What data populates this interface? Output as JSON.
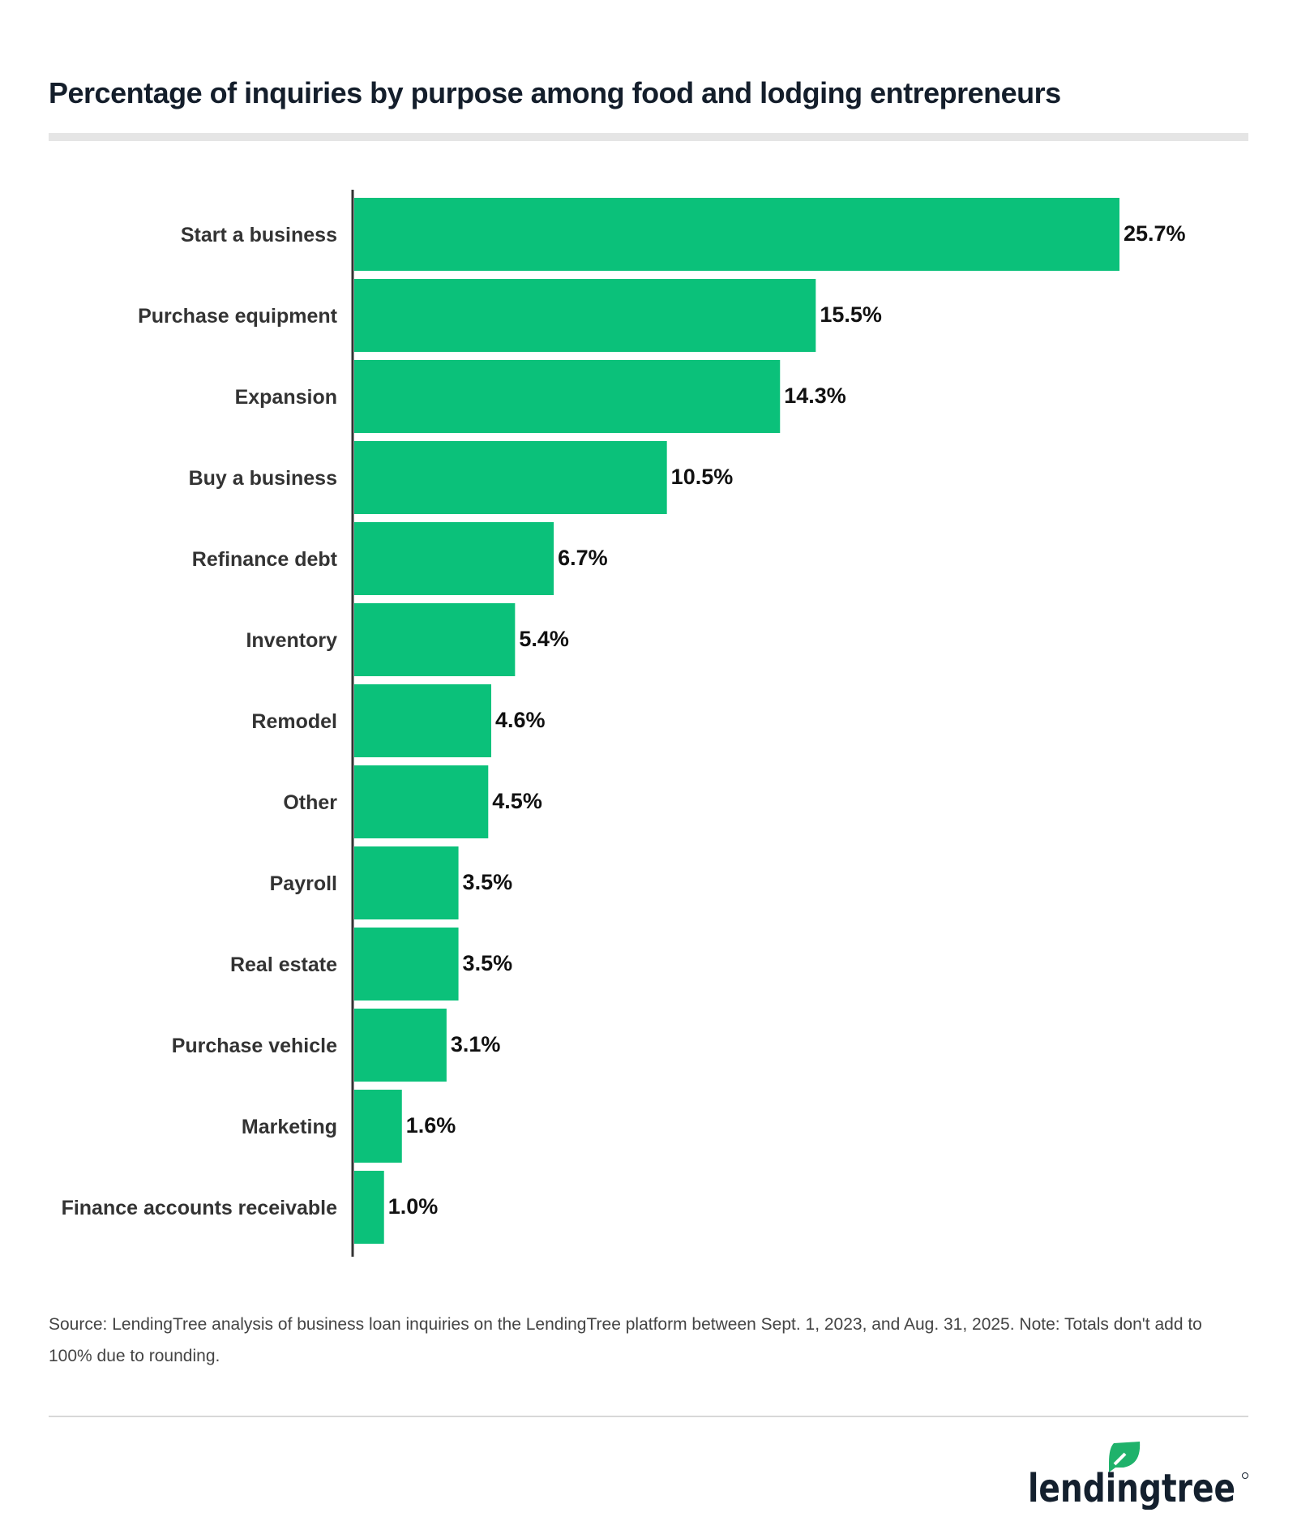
{
  "chart_data": {
    "type": "bar",
    "orientation": "horizontal",
    "title": "Percentage of inquiries by purpose among food and lodging entrepreneurs",
    "categories": [
      "Start a business",
      "Purchase equipment",
      "Expansion",
      "Buy a business",
      "Refinance debt",
      "Inventory",
      "Remodel",
      "Other",
      "Payroll",
      "Real estate",
      "Purchase vehicle",
      "Marketing",
      "Finance accounts receivable"
    ],
    "values": [
      25.7,
      15.5,
      14.3,
      10.5,
      6.7,
      5.4,
      4.6,
      4.5,
      3.5,
      3.5,
      3.1,
      1.6,
      1.0
    ],
    "value_labels": [
      "25.7%",
      "15.5%",
      "14.3%",
      "10.5%",
      "6.7%",
      "5.4%",
      "4.6%",
      "4.5%",
      "3.5%",
      "3.5%",
      "3.1%",
      "1.6%",
      "1.0%"
    ],
    "xlabel": "",
    "ylabel": "",
    "xlim": [
      0,
      28
    ],
    "grid": false,
    "bar_color": "#0bc17a"
  },
  "source": "Source: LendingTree analysis of business loan inquiries on the LendingTree platform between Sept. 1, 2023, and Aug. 31, 2025. Note: Totals don't add to 100% due to rounding.",
  "logo": {
    "text": "lendingtree",
    "leaf_color": "#1fb26b",
    "text_color": "#14202e"
  }
}
